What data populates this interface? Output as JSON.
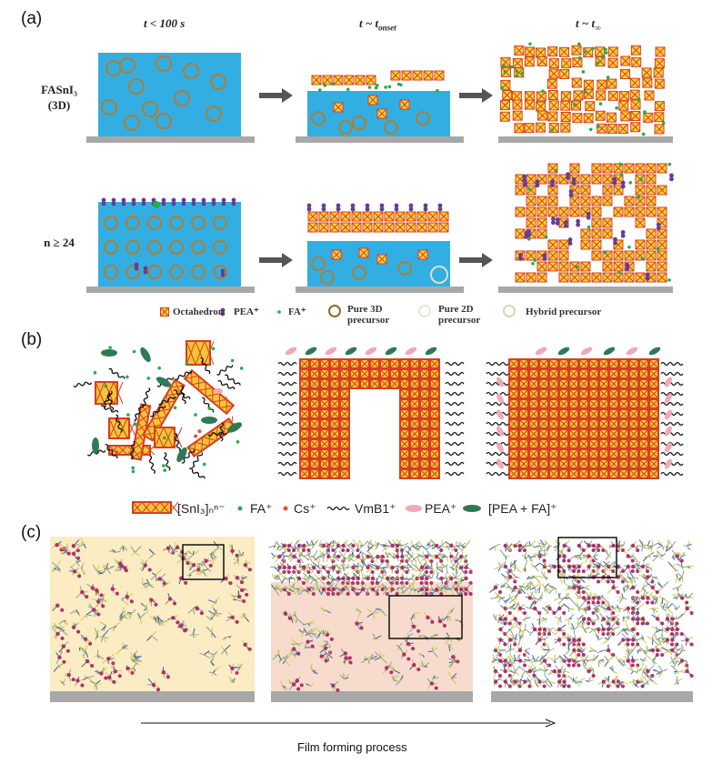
{
  "panel_a": {
    "label": "(a)",
    "column_headings": [
      "t < 100 s",
      "t ~ t",
      "onset",
      "t ~ t",
      "∞"
    ],
    "rows": [
      {
        "label_line1": "FASnI₃",
        "label_line2": "(3D)"
      },
      {
        "label_line1": "n ≥ 24",
        "label_line2": ""
      }
    ],
    "legend": [
      {
        "label": "Octahedron",
        "icon": "octahedron-icon"
      },
      {
        "label": "PEA⁺",
        "icon": "pea-molecule-icon"
      },
      {
        "label": "FA⁺",
        "icon": "fa-dot-icon"
      },
      {
        "label": "Pure 3D precursor",
        "icon": "ring-brown-icon"
      },
      {
        "label": "Pure 2D precursor",
        "icon": "ring-pale-icon"
      },
      {
        "label": "Hybrid precursor",
        "icon": "ring-beige-icon"
      }
    ]
  },
  "panel_b": {
    "label": "(b)",
    "legend": [
      {
        "label": "[SnI₃]ₙⁿ⁻",
        "icon": "sni3-chain-icon"
      },
      {
        "label": "FA⁺",
        "icon": "fa-dot-icon"
      },
      {
        "label": "Cs⁺",
        "icon": "cs-dot-icon"
      },
      {
        "label": "VmB1⁺",
        "icon": "vmb1-wave-icon"
      },
      {
        "label": "PEA⁺",
        "icon": "pea-ellipse-icon"
      },
      {
        "label": "[PEA + FA]⁺",
        "icon": "pea-fa-ellipse-icon"
      }
    ]
  },
  "panel_c": {
    "label": "(c)",
    "arrow_label": "Film forming process"
  },
  "colors": {
    "solution_blue": "#33aee3",
    "substrate_gray": "#a8a8a8",
    "octahedron_fill": "#f6d23a",
    "octahedron_edge": "#d6401f",
    "fa_green": "#1fae4b",
    "pea_purple": "#6a3b97",
    "c_panel1_bg": "#fbecc4",
    "c_panel2_bg": "#f7dccd",
    "pea_fa_green": "#2e7a55",
    "pea_pink": "#f1a9b4",
    "cs_red": "#e8502a"
  }
}
